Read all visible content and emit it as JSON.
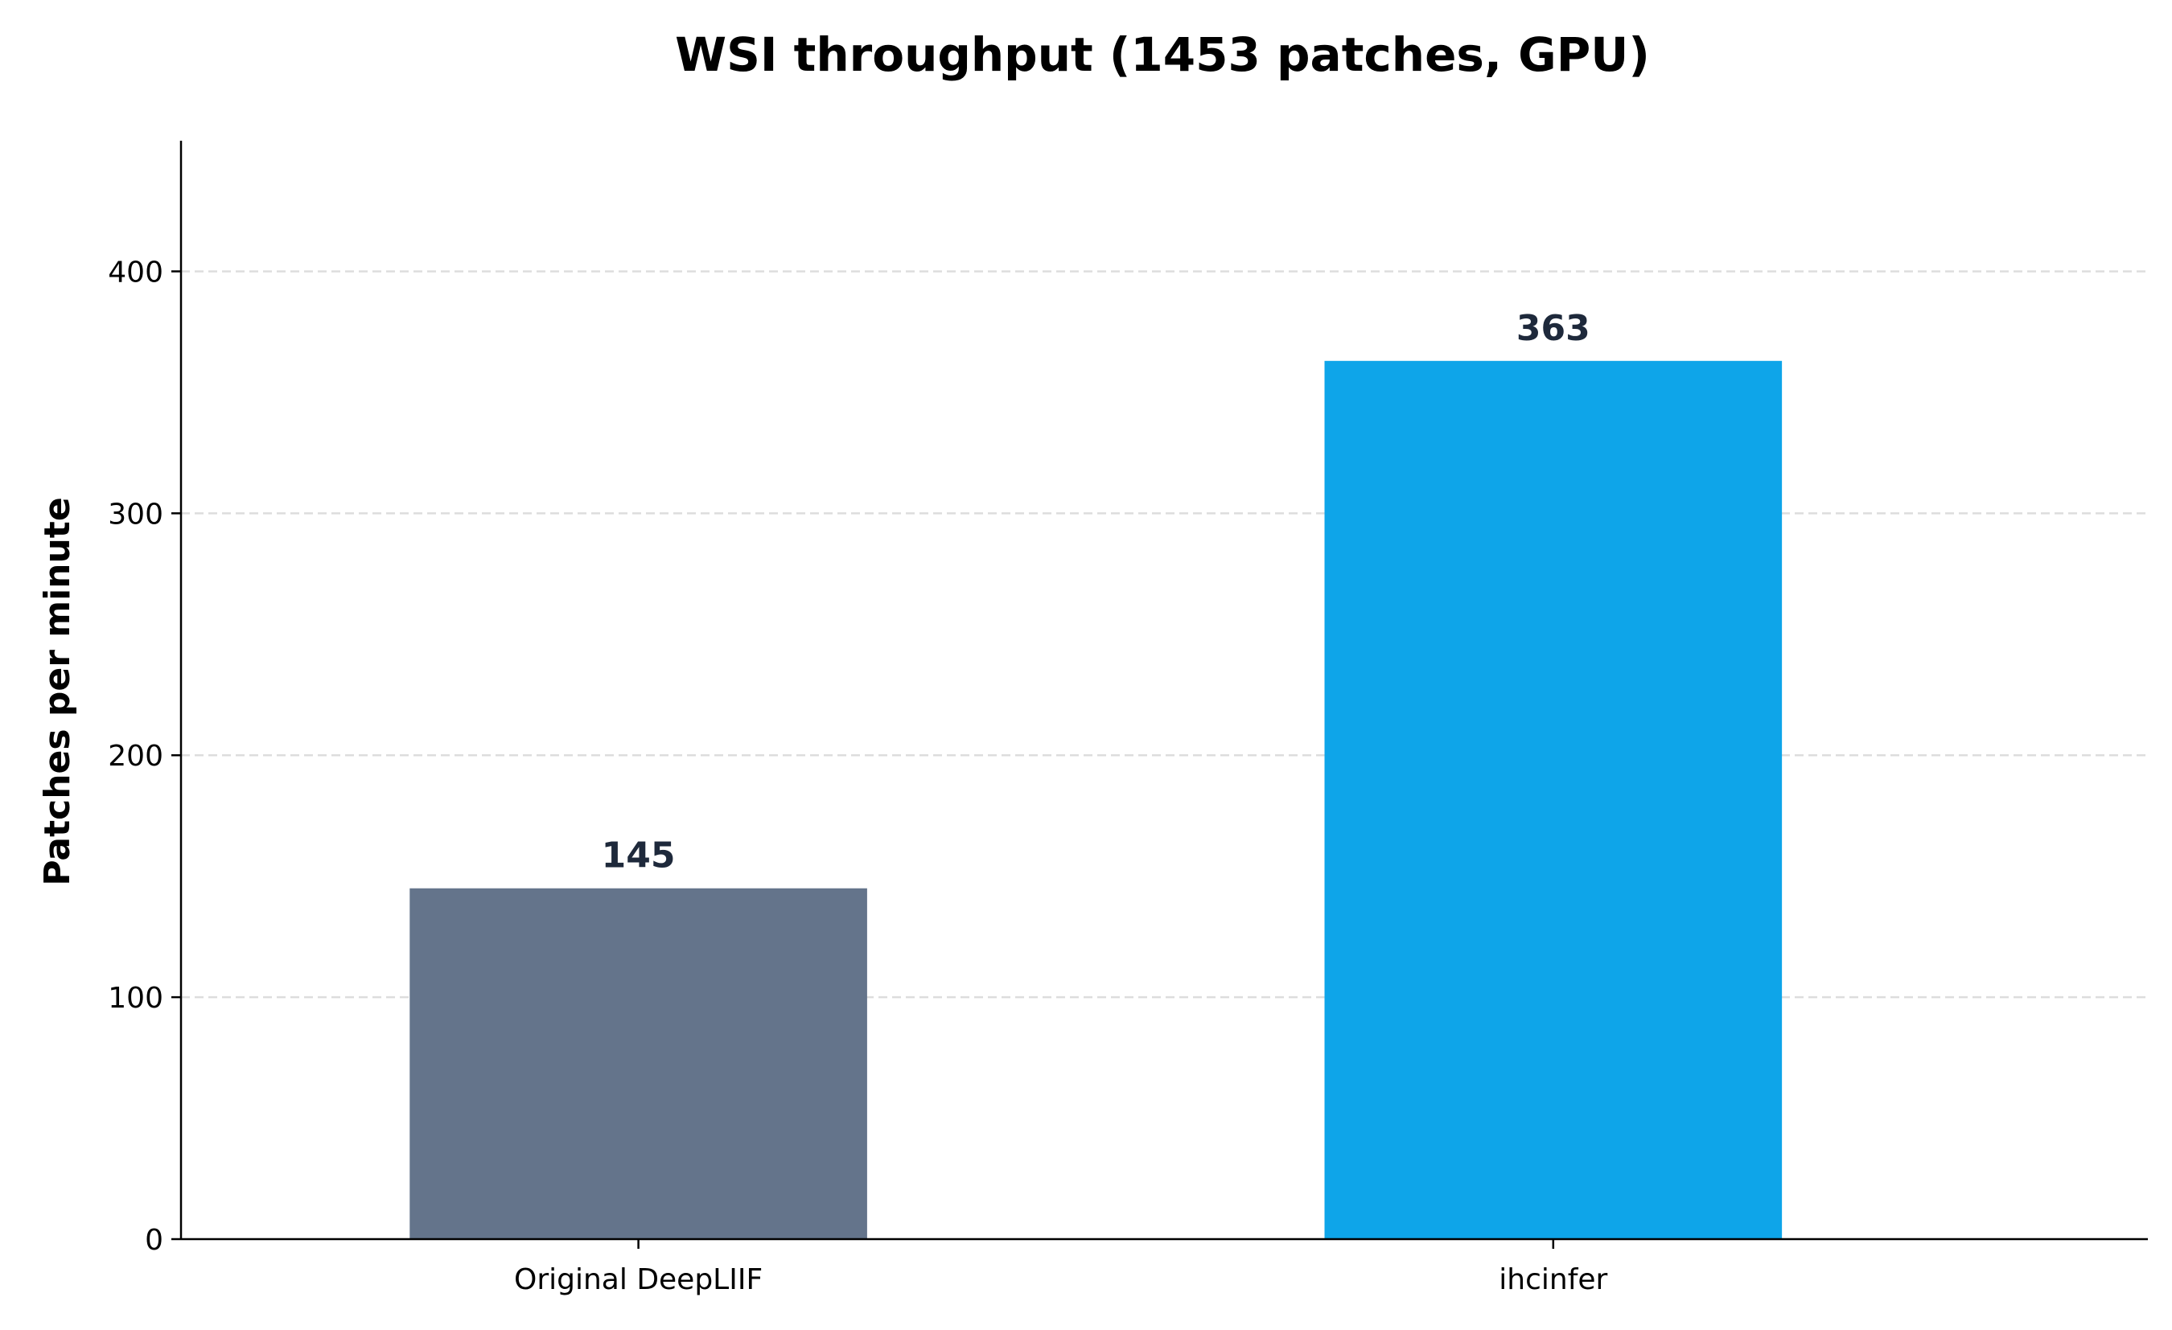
{
  "chart_data": {
    "type": "bar",
    "title": "WSI throughput (1453 patches, GPU)",
    "xlabel": "",
    "ylabel": "Patches per minute",
    "categories": [
      "Original DeepLIIF",
      "ihcinfer"
    ],
    "values": [
      145,
      363
    ],
    "value_labels": [
      "145",
      "363"
    ],
    "bar_colors": [
      "#64748b",
      "#0ea5e9"
    ],
    "value_label_color": "#1e293b",
    "ylim": [
      0,
      454
    ],
    "yticks": [
      0,
      100,
      200,
      300,
      400
    ],
    "ytick_labels": [
      "0",
      "100",
      "200",
      "300",
      "400"
    ],
    "grid": "horizontal dashed",
    "gridline_values": [
      100,
      200,
      300,
      400
    ],
    "grid_color": "#dddddd",
    "axis_color": "#000000",
    "legend": "none"
  }
}
